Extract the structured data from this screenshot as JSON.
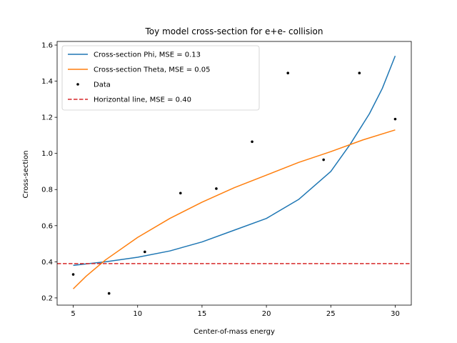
{
  "chart_data": {
    "type": "line",
    "title": "Toy model cross-section for e+e- collision",
    "xlabel": "Center-of-mass energy",
    "ylabel": "Cross-section",
    "xlim": [
      3.75,
      31.25
    ],
    "ylim": [
      0.16,
      1.62
    ],
    "xticks": [
      5,
      10,
      15,
      20,
      25,
      30
    ],
    "yticks": [
      0.2,
      0.4,
      0.6,
      0.8,
      1.0,
      1.2,
      1.4,
      1.6
    ],
    "grid": false,
    "legend_position": "top-left",
    "series": [
      {
        "name": "Cross-section Phi, MSE = 0.13",
        "kind": "line",
        "color": "#1f77b4",
        "x": [
          5,
          7.5,
          10,
          12.5,
          15,
          17.5,
          20,
          22.5,
          25,
          26.5,
          28,
          29,
          30
        ],
        "y": [
          0.38,
          0.4,
          0.425,
          0.46,
          0.51,
          0.575,
          0.64,
          0.745,
          0.9,
          1.05,
          1.22,
          1.36,
          1.54
        ]
      },
      {
        "name": "Cross-section Theta, MSE = 0.05",
        "kind": "line",
        "color": "#ff7f0e",
        "x": [
          5,
          6,
          7.5,
          10,
          12.5,
          15,
          17.5,
          20,
          22.5,
          25,
          27.5,
          30
        ],
        "y": [
          0.25,
          0.32,
          0.41,
          0.535,
          0.64,
          0.73,
          0.81,
          0.88,
          0.95,
          1.01,
          1.075,
          1.13
        ]
      },
      {
        "name": "Data",
        "kind": "scatter",
        "color": "#000000",
        "x": [
          5,
          7.78,
          10.56,
          13.33,
          16.11,
          18.89,
          21.67,
          24.44,
          27.22,
          30
        ],
        "y": [
          0.33,
          0.225,
          0.455,
          0.78,
          0.805,
          1.065,
          1.445,
          0.965,
          1.445,
          1.19
        ]
      },
      {
        "name": "Horizontal line, MSE = 0.40",
        "kind": "hline",
        "color": "#d62728",
        "y": 0.39
      }
    ]
  }
}
